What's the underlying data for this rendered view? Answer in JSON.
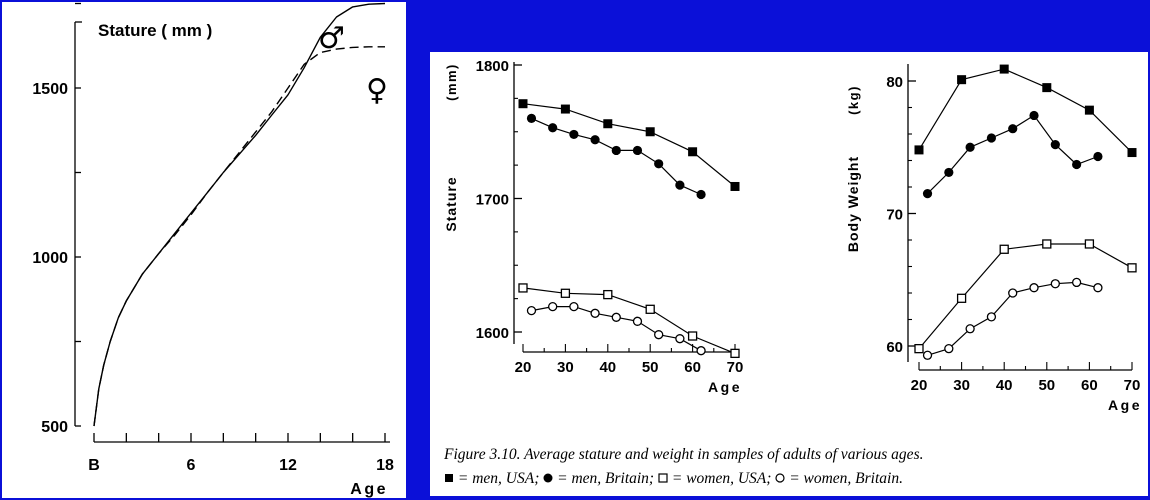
{
  "chart_data": [
    {
      "type": "line",
      "title": "Stature ( mm )",
      "xlabel": "Age",
      "ylabel": "",
      "x_ticks": [
        {
          "value": 0,
          "label": "B"
        },
        {
          "value": 6,
          "label": "6"
        },
        {
          "value": 12,
          "label": "12"
        },
        {
          "value": 18,
          "label": "18"
        }
      ],
      "y_ticks": [
        500,
        1000,
        1500
      ],
      "xlim": [
        0,
        18
      ],
      "ylim": [
        500,
        1750
      ],
      "series": [
        {
          "name": "♂",
          "style": "solid",
          "x": [
            0,
            0.3,
            0.6,
            1,
            1.5,
            2,
            3,
            4,
            5,
            6,
            7,
            8,
            9,
            10,
            11,
            12,
            13,
            14,
            15,
            16,
            17,
            18
          ],
          "y": [
            500,
            610,
            680,
            750,
            820,
            870,
            950,
            1010,
            1070,
            1130,
            1190,
            1250,
            1305,
            1360,
            1420,
            1480,
            1560,
            1650,
            1710,
            1740,
            1748,
            1750
          ]
        },
        {
          "name": "♀",
          "style": "dashed",
          "x": [
            0,
            0.3,
            0.6,
            1,
            1.5,
            2,
            3,
            4,
            5,
            6,
            7,
            8,
            9,
            10,
            11,
            12,
            13,
            14,
            15,
            16,
            17,
            18
          ],
          "y": [
            500,
            610,
            680,
            750,
            820,
            870,
            950,
            1010,
            1065,
            1125,
            1190,
            1250,
            1310,
            1370,
            1430,
            1500,
            1570,
            1605,
            1615,
            1620,
            1622,
            1622
          ]
        }
      ]
    },
    {
      "type": "line",
      "title": "",
      "xlabel": "Age",
      "ylabel": "Stature",
      "y_unit": "(mm)",
      "x_ticks": [
        20,
        30,
        40,
        50,
        60,
        70
      ],
      "y_ticks": [
        1600,
        1700,
        1800
      ],
      "xlim": [
        20,
        70
      ],
      "ylim": [
        1585,
        1800
      ],
      "series": [
        {
          "name": "men, USA",
          "marker": "filled-square",
          "x": [
            20,
            30,
            40,
            50,
            60,
            70
          ],
          "y": [
            1771,
            1767,
            1756,
            1750,
            1735,
            1709
          ]
        },
        {
          "name": "men, Britain",
          "marker": "filled-circle",
          "x": [
            22,
            27,
            32,
            37,
            42,
            47,
            52,
            57,
            62
          ],
          "y": [
            1760,
            1753,
            1748,
            1744,
            1736,
            1736,
            1726,
            1710,
            1703
          ]
        },
        {
          "name": "women, USA",
          "marker": "open-square",
          "x": [
            20,
            30,
            40,
            50,
            60,
            70
          ],
          "y": [
            1633,
            1629,
            1628,
            1617,
            1597,
            1584
          ]
        },
        {
          "name": "women, Britain",
          "marker": "open-circle",
          "x": [
            22,
            27,
            32,
            37,
            42,
            47,
            52,
            57,
            62
          ],
          "y": [
            1616,
            1619,
            1619,
            1614,
            1611,
            1608,
            1598,
            1595,
            1586
          ]
        }
      ]
    },
    {
      "type": "line",
      "title": "",
      "xlabel": "Age",
      "ylabel": "Body Weight",
      "y_unit": "(kg)",
      "x_ticks": [
        20,
        30,
        40,
        50,
        60,
        70
      ],
      "y_ticks": [
        60,
        70,
        80
      ],
      "xlim": [
        20,
        70
      ],
      "ylim": [
        58.5,
        82
      ],
      "series": [
        {
          "name": "men, USA",
          "marker": "filled-square",
          "x": [
            20,
            30,
            40,
            50,
            60,
            70
          ],
          "y": [
            74.8,
            80.1,
            80.9,
            79.5,
            77.8,
            74.6
          ]
        },
        {
          "name": "men, Britain",
          "marker": "filled-circle",
          "x": [
            22,
            27,
            32,
            37,
            42,
            47,
            52,
            57,
            62
          ],
          "y": [
            71.5,
            73.1,
            75.0,
            75.7,
            76.4,
            77.4,
            75.2,
            73.7,
            74.3
          ]
        },
        {
          "name": "women, USA",
          "marker": "open-square",
          "x": [
            20,
            30,
            40,
            50,
            60,
            70
          ],
          "y": [
            59.8,
            63.6,
            67.3,
            67.7,
            67.7,
            65.9
          ]
        },
        {
          "name": "women, Britain",
          "marker": "open-circle",
          "x": [
            22,
            27,
            32,
            37,
            42,
            47,
            52,
            57,
            62
          ],
          "y": [
            59.3,
            59.8,
            61.3,
            62.2,
            64.0,
            64.4,
            64.7,
            64.8,
            64.4
          ]
        }
      ]
    }
  ],
  "caption": {
    "line1": "Figure 3.10.     Average stature and weight in samples of adults of various ages.",
    "legend": [
      {
        "marker": "filled-square",
        "text": " = men, USA; "
      },
      {
        "marker": "filled-circle",
        "text": " = men, Britain; "
      },
      {
        "marker": "open-square",
        "text": " = women, USA; "
      },
      {
        "marker": "open-circle",
        "text": " = women, Britain."
      }
    ]
  },
  "symbols": {
    "male": "♂",
    "female": "♀"
  }
}
